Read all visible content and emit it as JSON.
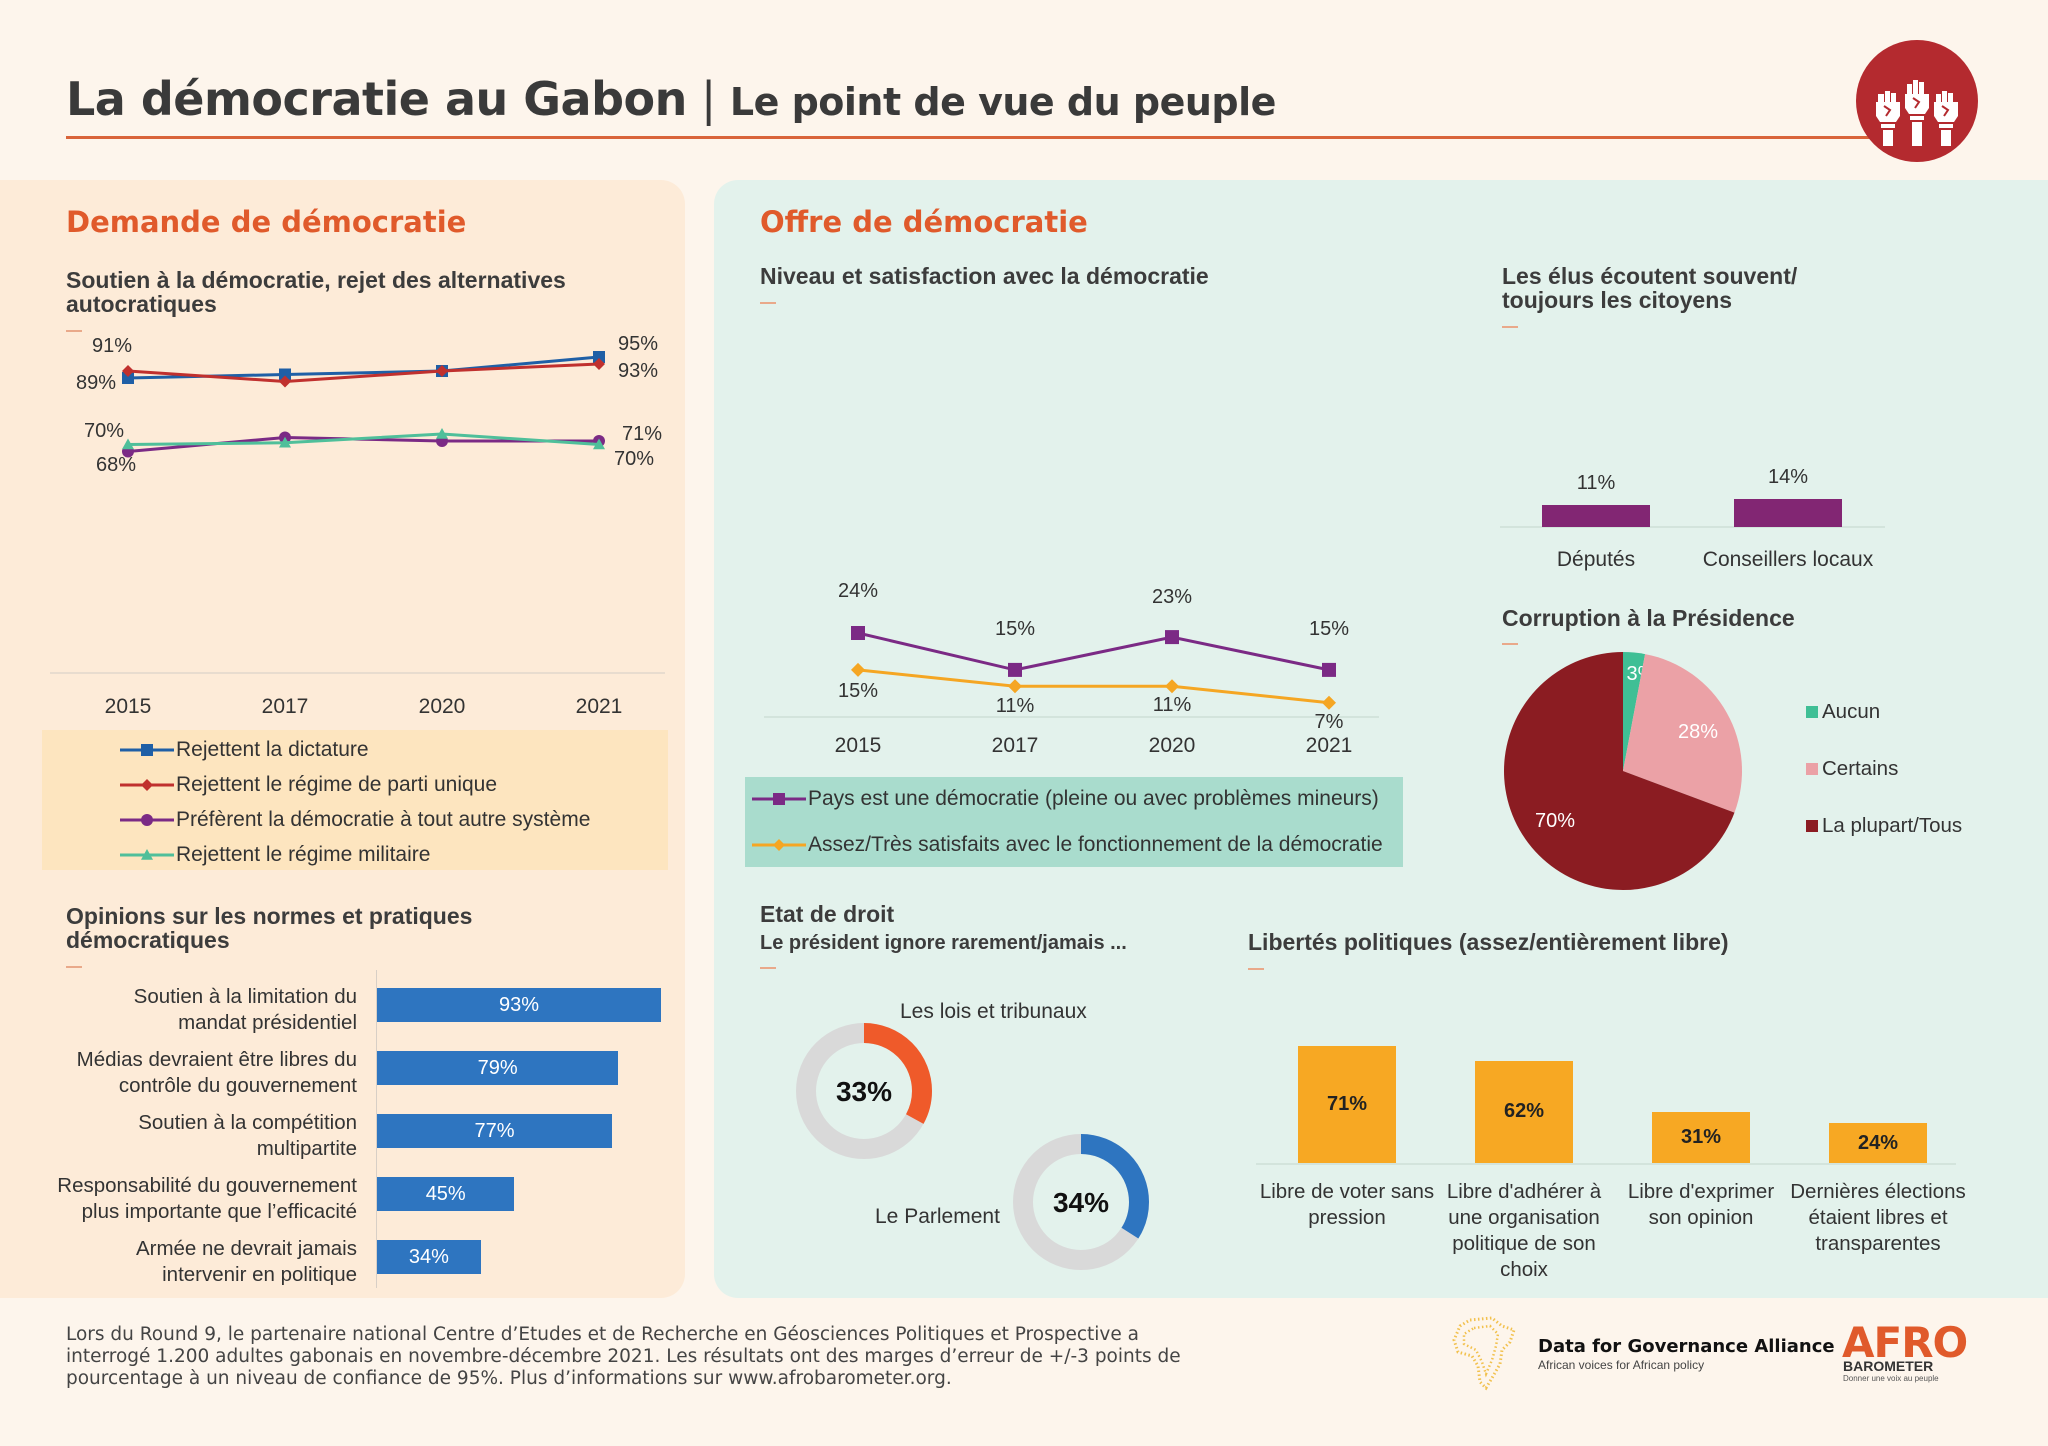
{
  "header": {
    "title": "La démocratie au Gabon",
    "separator": "|",
    "subtitle": "Le point de vue du peuple",
    "logo_icon": "raised-fists-icon"
  },
  "colors": {
    "accent_orange": "#e05a2b",
    "logo_red": "#b42a2f",
    "panel_left": "#fdebd8",
    "panel_right": "#e3f2ec"
  },
  "demand": {
    "section_title": "Demande de démocratie",
    "support_chart_title": "Soutien à la démocratie, rejet des alternatives autocratiques",
    "norms_chart_title": "Opinions sur les normes et pratiques démocratiques"
  },
  "supply": {
    "section_title": "Offre de démocratie",
    "level_chart_title": "Niveau et satisfaction avec la démocratie",
    "elus_chart_title": "Les élus écoutent souvent/ toujours les citoyens",
    "corruption_chart_title": "Corruption à la Présidence",
    "rule_of_law_title": "Etat de droit",
    "rule_of_law_subtitle": "Le président ignore rarement/jamais ...",
    "liberties_chart_title": "Libertés politiques (assez/entièrement libre)"
  },
  "chart_data": [
    {
      "id": "support",
      "type": "line",
      "title": "Soutien à la démocratie, rejet des alternatives autocratiques",
      "categories": [
        "2015",
        "2017",
        "2020",
        "2021"
      ],
      "series": [
        {
          "name": "Rejettent la dictature",
          "color": "#1f5fa6",
          "marker": "square",
          "values": [
            89,
            90,
            91,
            95
          ],
          "labels": {
            "0": "89%",
            "3": "95%"
          }
        },
        {
          "name": "Rejettent le régime de parti unique",
          "color": "#c0302e",
          "marker": "diamond",
          "values": [
            91,
            88,
            91,
            93
          ],
          "labels": {
            "0": "91%",
            "3": "93%"
          }
        },
        {
          "name": "Préfèrent la démocratie à tout autre système",
          "color": "#7b2a85",
          "marker": "circle",
          "values": [
            68,
            72,
            71,
            71
          ],
          "labels": {
            "0": "68%",
            "3": "71%"
          }
        },
        {
          "name": "Rejettent le régime militaire",
          "color": "#4fbf9a",
          "marker": "triangle",
          "values": [
            70,
            70.5,
            73,
            70
          ],
          "labels": {
            "0": "70%",
            "3": "70%"
          }
        }
      ],
      "legend": "bottom"
    },
    {
      "id": "norms",
      "type": "bar",
      "orientation": "horizontal",
      "title": "Opinions sur les normes et pratiques démocratiques",
      "categories": [
        "Soutien à la limitation du mandat présidentiel",
        "Médias devraient être libres du contrôle du gouvernement",
        "Soutien à la compétition multipartite",
        "Responsabilité du gouvernement plus importante que l’efficacité",
        "Armée ne devrait jamais intervenir en politique"
      ],
      "category_lines": [
        [
          "Soutien à la limitation du",
          "mandat présidentiel"
        ],
        [
          "Médias devraient être libres du",
          "contrôle du gouvernement"
        ],
        [
          "Soutien à la compétition",
          "multipartite"
        ],
        [
          "Responsabilité du gouvernement",
          "plus importante que l’efficacité"
        ],
        [
          "Armée ne devrait jamais",
          "intervenir en politique"
        ]
      ],
      "values": [
        93,
        79,
        77,
        45,
        34
      ],
      "value_labels": [
        "93%",
        "79%",
        "77%",
        "45%",
        "34%"
      ],
      "color": "#2e75c0",
      "xlim": [
        0,
        93
      ]
    },
    {
      "id": "level",
      "type": "line",
      "title": "Niveau et satisfaction avec la démocratie",
      "categories": [
        "2015",
        "2017",
        "2020",
        "2021"
      ],
      "series": [
        {
          "name": "Pays est une démocratie (pleine ou avec problèmes mineurs)",
          "color": "#7b2a85",
          "marker": "square",
          "values": [
            24,
            15,
            23,
            15
          ],
          "value_labels": [
            "24%",
            "15%",
            "23%",
            "15%"
          ]
        },
        {
          "name": "Assez/Très satisfaits avec le fonctionnement de la démocratie",
          "color": "#f5a623",
          "marker": "diamond",
          "values": [
            15,
            11,
            11,
            7
          ],
          "value_labels": [
            "15%",
            "11%",
            "11%",
            "7%"
          ]
        }
      ],
      "legend": "bottom"
    },
    {
      "id": "elus",
      "type": "bar",
      "title": "Les élus écoutent souvent/ toujours les citoyens",
      "categories": [
        "Députés",
        "Conseillers locaux"
      ],
      "values": [
        11,
        14
      ],
      "value_labels": [
        "11%",
        "14%"
      ],
      "color": "#822673"
    },
    {
      "id": "corruption",
      "type": "pie",
      "title": "Corruption à la Présidence",
      "categories": [
        "Aucun",
        "Certains",
        "La plupart/Tous"
      ],
      "values": [
        3,
        28,
        70
      ],
      "value_labels": [
        "3%",
        "28%",
        "70%"
      ],
      "colors": [
        "#3fbf95",
        "#eba1a6",
        "#8b1c22"
      ],
      "legend": "right"
    },
    {
      "id": "rule_of_law",
      "type": "pie",
      "variant": "donut",
      "title": "Etat de droit — Le président ignore rarement/jamais ...",
      "items": [
        {
          "label": "Les lois et tribunaux",
          "value": 33,
          "value_label": "33%",
          "color": "#ef5a2a"
        },
        {
          "label": "Le Parlement",
          "value": 34,
          "value_label": "34%",
          "color": "#2e75c0"
        }
      ],
      "track_color": "#d9d9d9"
    },
    {
      "id": "liberties",
      "type": "bar",
      "title": "Libertés politiques (assez/entièrement libre)",
      "categories": [
        "Libre de voter sans pression",
        "Libre d'adhérer à une organisation politique de son choix",
        "Libre d'exprimer son opinion",
        "Dernières élections étaient libres et transparentes"
      ],
      "category_lines": [
        [
          "Libre de voter sans",
          "pression"
        ],
        [
          "Libre d'adhérer à",
          "une organisation",
          "politique de son",
          "choix"
        ],
        [
          "Libre d'exprimer",
          "son opinion"
        ],
        [
          "Dernières élections",
          "étaient libres et",
          "transparentes"
        ]
      ],
      "values": [
        71,
        62,
        31,
        24
      ],
      "value_labels": [
        "71%",
        "62%",
        "31%",
        "24%"
      ],
      "color": "#f7a823"
    }
  ],
  "footer": {
    "text": "Lors du Round 9, le partenaire national Centre d’Etudes et de Recherche en Géosciences Politiques et Prospective a interrogé 1.200 adultes gabonais en novembre-décembre 2021. Les résultats ont des marges d’erreur de +/-3 points de pourcentage à un niveau de confiance de 95%. Plus d’informations sur www.afrobarometer.org.",
    "partner_name": "Data for Governance Alliance",
    "partner_tagline": "African voices for African policy",
    "partner_icon": "africa-map-icon",
    "brand_word": "AFRO",
    "brand_sub": "BAROMETER",
    "brand_tagline": "Donner une voix au peuple"
  }
}
